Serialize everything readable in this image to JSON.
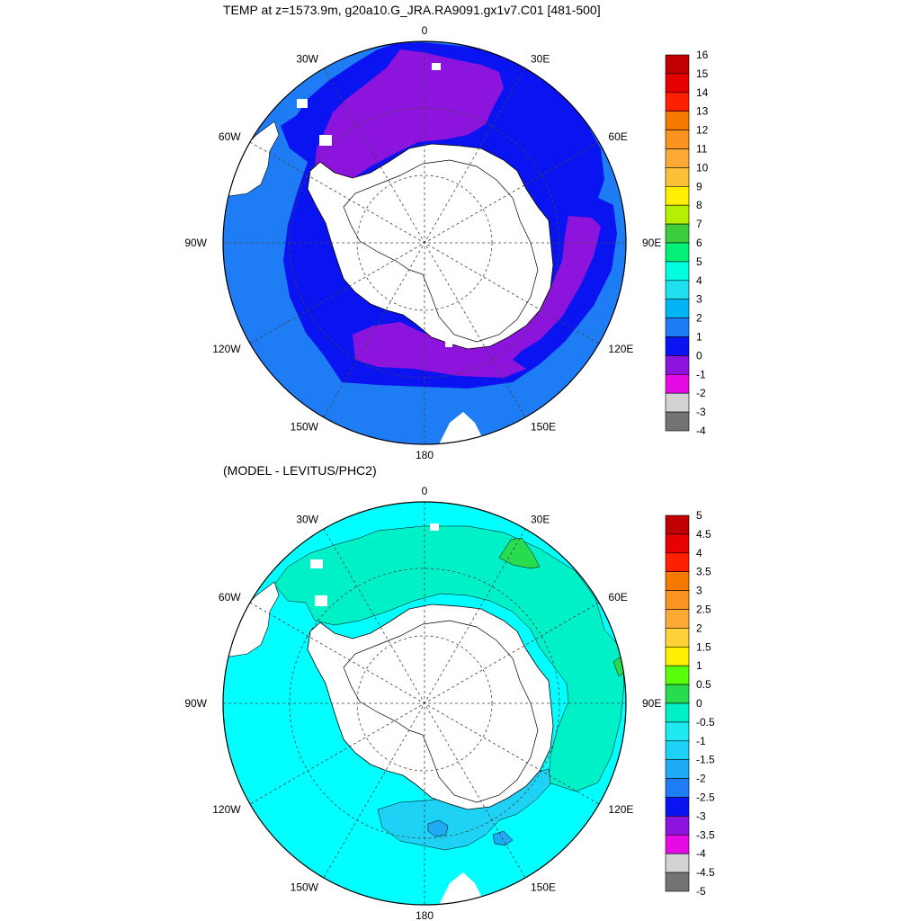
{
  "top_title": "TEMP at z=1573.9m, g20a10.G_JRA.RA9091.gx1v7.C01 [481-500]",
  "bottom_title": "(MODEL - LEVITUS/PHC2)",
  "longitude_labels": [
    "0",
    "30E",
    "60E",
    "90E",
    "120E",
    "150E",
    "180",
    "150W",
    "120W",
    "90W",
    "60W",
    "30W"
  ],
  "colorbar_top": {
    "labels": [
      "16",
      "15",
      "14",
      "13",
      "12",
      "11",
      "10",
      "9",
      "8",
      "7",
      "6",
      "5",
      "4",
      "3",
      "2",
      "1",
      "0",
      "-1",
      "-2",
      "-3",
      "-4"
    ],
    "colors": [
      "#c00000",
      "#e60000",
      "#ff2000",
      "#f77a00",
      "#fa9320",
      "#fca834",
      "#fdc137",
      "#fff000",
      "#b4f000",
      "#3ccc3c",
      "#00f078",
      "#00ffe0",
      "#20e0f0",
      "#00b4f5",
      "#1e7cf5",
      "#0a14f0",
      "#8c14dc",
      "#e60ae6",
      "#d2d2d2",
      "#737373"
    ]
  },
  "colorbar_bottom": {
    "labels": [
      "5",
      "4.5",
      "4",
      "3.5",
      "3",
      "2.5",
      "2",
      "1.5",
      "1",
      "0.5",
      "0",
      "-0.5",
      "-1",
      "-1.5",
      "-2",
      "-2.5",
      "-3",
      "-3.5",
      "-4",
      "-4.5",
      "-5"
    ],
    "colors": [
      "#c00000",
      "#e60000",
      "#ff2000",
      "#f77a00",
      "#fa9320",
      "#fca834",
      "#fdd237",
      "#fff000",
      "#5aff0a",
      "#28dc50",
      "#00f0c8",
      "#1ee8f0",
      "#1ed2f5",
      "#1eaaf5",
      "#1e7cf5",
      "#0a14f0",
      "#8c14dc",
      "#e60ae6",
      "#d2d2d2",
      "#737373"
    ]
  },
  "top_map_fields": [
    "#1e7cf5",
    "#0a14f0",
    "#8c14dc"
  ],
  "bottom_map_fields": [
    "#00ffff",
    "#00f0c8",
    "#1ed2f5",
    "#1eaaf5",
    "#28dc50"
  ]
}
